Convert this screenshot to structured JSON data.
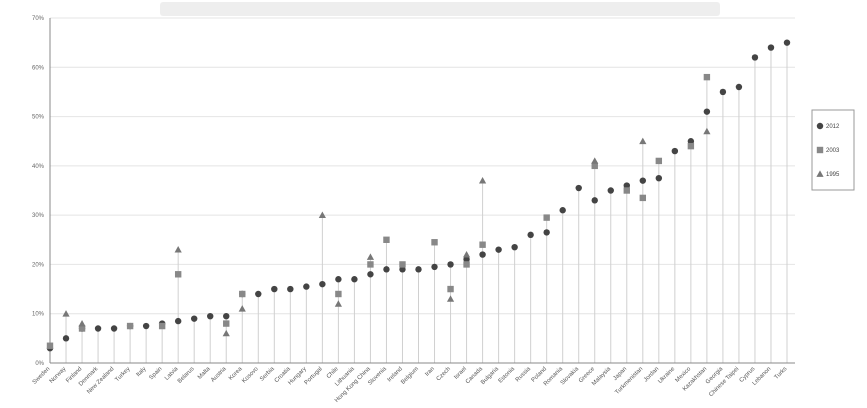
{
  "chart_data": {
    "type": "scatter",
    "title": "",
    "xlabel": "",
    "ylabel": "",
    "ylim": [
      0,
      70
    ],
    "yticks": [
      "0%",
      "10%",
      "20%",
      "30%",
      "40%",
      "50%",
      "60%",
      "70%"
    ],
    "grid": true,
    "legend_position": "right",
    "categories": [
      "Sweden",
      "Norway",
      "Finland",
      "Denmark",
      "New Zealand",
      "Turkey",
      "Italy",
      "Spain",
      "Latvia",
      "Belarus",
      "Malta",
      "Austria",
      "Korea",
      "Kosovo",
      "Serbia",
      "Croatia",
      "Hungary",
      "Portugal",
      "Chile",
      "Lithuania",
      "Hong Kong China",
      "Slovenia",
      "Ireland",
      "Belgium",
      "Iran",
      "Czech",
      "Israel",
      "Canada",
      "Bulgaria",
      "Estonia",
      "Russia",
      "Poland",
      "Romania",
      "Slovakia",
      "Greece",
      "Malaysia",
      "Japan",
      "Turkmenistan",
      "Jordan",
      "Ukraine",
      "Mexico",
      "Kazakhstan",
      "Georgia",
      "Chinese Taipei",
      "Cyprus",
      "Lebanon",
      "Turks"
    ],
    "series": [
      {
        "name": "2012",
        "marker": "circle",
        "color": "#444444",
        "values": [
          3,
          5,
          7,
          7,
          7,
          7.5,
          7.5,
          8,
          8.5,
          9,
          9.5,
          9.5,
          14,
          14,
          15,
          15,
          15.5,
          16,
          17,
          17,
          18,
          19,
          19,
          19,
          19.5,
          20,
          21,
          22,
          23,
          23.5,
          26,
          26.5,
          31,
          35.5,
          33,
          35,
          36,
          37,
          37.5,
          43,
          45,
          51,
          55,
          56,
          62,
          64,
          65
        ]
      },
      {
        "name": "2003",
        "marker": "square",
        "color": "#888888",
        "values": [
          3.5,
          null,
          7,
          null,
          null,
          7.5,
          null,
          7.5,
          18,
          null,
          null,
          8,
          14,
          null,
          null,
          null,
          null,
          null,
          14,
          null,
          20,
          25,
          20,
          null,
          24.5,
          15,
          20,
          24,
          null,
          null,
          null,
          29.5,
          null,
          null,
          40,
          null,
          35,
          33.5,
          41,
          null,
          44,
          58,
          null,
          null,
          null,
          null,
          null
        ]
      },
      {
        "name": "1995",
        "marker": "triangle",
        "color": "#777777",
        "values": [
          null,
          10,
          8,
          null,
          null,
          null,
          null,
          null,
          23,
          null,
          null,
          6,
          11,
          null,
          null,
          null,
          null,
          30,
          12,
          null,
          21.5,
          null,
          null,
          null,
          null,
          13,
          22,
          37,
          null,
          null,
          null,
          null,
          null,
          null,
          41,
          null,
          null,
          45,
          null,
          null,
          null,
          47,
          null,
          null,
          null,
          null,
          null
        ]
      }
    ]
  }
}
